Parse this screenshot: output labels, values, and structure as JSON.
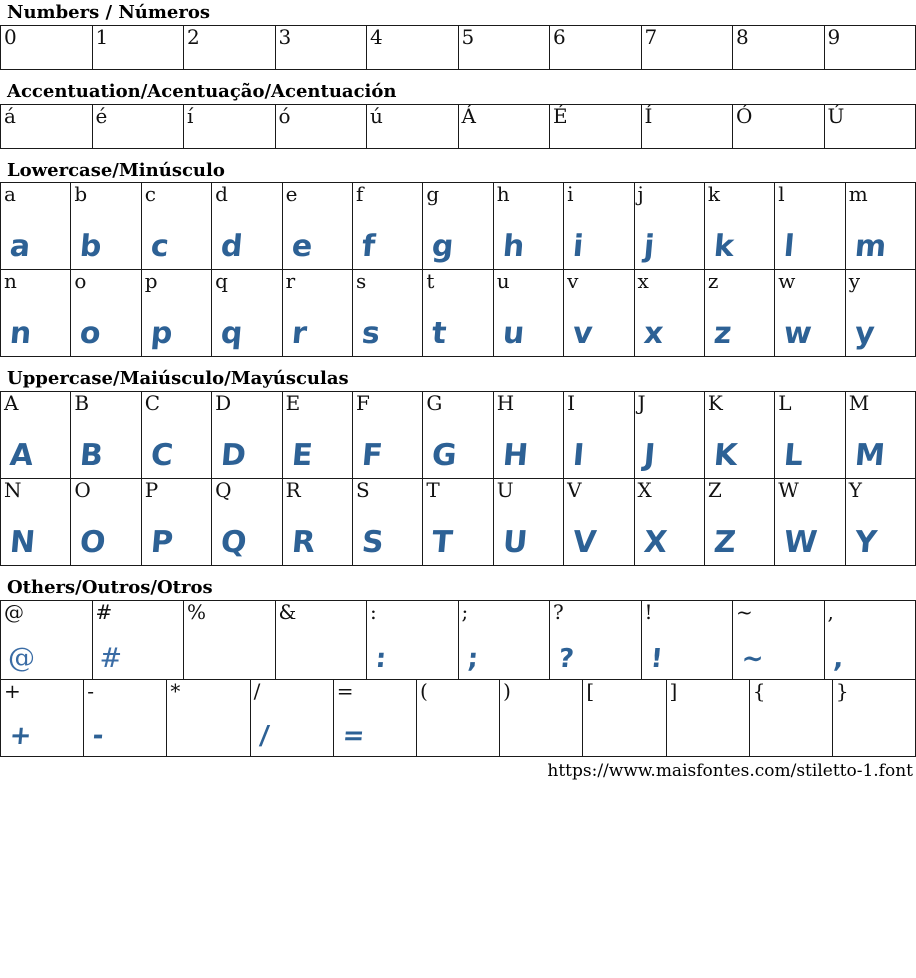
{
  "page": {
    "url": "https://www.maisfontes.com/stiletto-1.font",
    "glyph_color": "#2d6195",
    "fallback_glyph_color": "#3a6ca5",
    "border_color": "#1a1a1a"
  },
  "sections": [
    {
      "id": "numbers",
      "title": "Numbers / Números",
      "rows": [
        {
          "height": "h44",
          "cells": [
            {
              "label": "0",
              "glyph": ""
            },
            {
              "label": "1",
              "glyph": ""
            },
            {
              "label": "2",
              "glyph": ""
            },
            {
              "label": "3",
              "glyph": ""
            },
            {
              "label": "4",
              "glyph": ""
            },
            {
              "label": "5",
              "glyph": ""
            },
            {
              "label": "6",
              "glyph": ""
            },
            {
              "label": "7",
              "glyph": ""
            },
            {
              "label": "8",
              "glyph": ""
            },
            {
              "label": "9",
              "glyph": ""
            }
          ]
        }
      ]
    },
    {
      "id": "accentuation",
      "title": "Accentuation/Acentuação/Acentuación",
      "rows": [
        {
          "height": "h44",
          "cells": [
            {
              "label": "á",
              "glyph": ""
            },
            {
              "label": "é",
              "glyph": ""
            },
            {
              "label": "í",
              "glyph": ""
            },
            {
              "label": "ó",
              "glyph": ""
            },
            {
              "label": "ú",
              "glyph": ""
            },
            {
              "label": "Á",
              "glyph": ""
            },
            {
              "label": "É",
              "glyph": ""
            },
            {
              "label": "Í",
              "glyph": ""
            },
            {
              "label": "Ó",
              "glyph": ""
            },
            {
              "label": "Ú",
              "glyph": ""
            }
          ]
        }
      ]
    },
    {
      "id": "lowercase",
      "title": "Lowercase/Minúsculo",
      "rows": [
        {
          "height": "h88",
          "cells": [
            {
              "label": "a",
              "glyph": "a"
            },
            {
              "label": "b",
              "glyph": "b"
            },
            {
              "label": "c",
              "glyph": "c"
            },
            {
              "label": "d",
              "glyph": "d"
            },
            {
              "label": "e",
              "glyph": "e"
            },
            {
              "label": "f",
              "glyph": "f"
            },
            {
              "label": "g",
              "glyph": "g"
            },
            {
              "label": "h",
              "glyph": "h"
            },
            {
              "label": "i",
              "glyph": "i"
            },
            {
              "label": "j",
              "glyph": "j"
            },
            {
              "label": "k",
              "glyph": "k"
            },
            {
              "label": "l",
              "glyph": "l"
            },
            {
              "label": "m",
              "glyph": "m"
            }
          ]
        },
        {
          "height": "h88",
          "cells": [
            {
              "label": "n",
              "glyph": "n"
            },
            {
              "label": "o",
              "glyph": "o"
            },
            {
              "label": "p",
              "glyph": "p"
            },
            {
              "label": "q",
              "glyph": "q"
            },
            {
              "label": "r",
              "glyph": "r"
            },
            {
              "label": "s",
              "glyph": "s"
            },
            {
              "label": "t",
              "glyph": "t"
            },
            {
              "label": "u",
              "glyph": "u"
            },
            {
              "label": "v",
              "glyph": "v"
            },
            {
              "label": "x",
              "glyph": "x"
            },
            {
              "label": "z",
              "glyph": "z"
            },
            {
              "label": "w",
              "glyph": "w"
            },
            {
              "label": "y",
              "glyph": "y"
            }
          ]
        }
      ]
    },
    {
      "id": "uppercase",
      "title": "Uppercase/Maiúsculo/Mayúsculas",
      "rows": [
        {
          "height": "h88",
          "cells": [
            {
              "label": "A",
              "glyph": "A"
            },
            {
              "label": "B",
              "glyph": "B"
            },
            {
              "label": "C",
              "glyph": "C"
            },
            {
              "label": "D",
              "glyph": "D"
            },
            {
              "label": "E",
              "glyph": "E"
            },
            {
              "label": "F",
              "glyph": "F"
            },
            {
              "label": "G",
              "glyph": "G"
            },
            {
              "label": "H",
              "glyph": "H"
            },
            {
              "label": "I",
              "glyph": "I"
            },
            {
              "label": "J",
              "glyph": "J"
            },
            {
              "label": "K",
              "glyph": "K"
            },
            {
              "label": "L",
              "glyph": "L"
            },
            {
              "label": "M",
              "glyph": "M"
            }
          ]
        },
        {
          "height": "h88",
          "cells": [
            {
              "label": "N",
              "glyph": "N"
            },
            {
              "label": "O",
              "glyph": "O"
            },
            {
              "label": "P",
              "glyph": "P"
            },
            {
              "label": "Q",
              "glyph": "Q"
            },
            {
              "label": "R",
              "glyph": "R"
            },
            {
              "label": "S",
              "glyph": "S"
            },
            {
              "label": "T",
              "glyph": "T"
            },
            {
              "label": "U",
              "glyph": "U"
            },
            {
              "label": "V",
              "glyph": "V"
            },
            {
              "label": "X",
              "glyph": "X"
            },
            {
              "label": "Z",
              "glyph": "Z"
            },
            {
              "label": "W",
              "glyph": "W"
            },
            {
              "label": "Y",
              "glyph": "Y"
            }
          ]
        }
      ]
    },
    {
      "id": "others",
      "title": "Others/Outros/Otros",
      "rows": [
        {
          "height": "h80",
          "cells": [
            {
              "label": "@",
              "glyph": "@",
              "variant": "fallback"
            },
            {
              "label": "#",
              "glyph": "#",
              "variant": "fallback"
            },
            {
              "label": "%",
              "glyph": ""
            },
            {
              "label": "&",
              "glyph": ""
            },
            {
              "label": ":",
              "glyph": ":",
              "variant": "sym"
            },
            {
              "label": ";",
              "glyph": ";",
              "variant": "sym"
            },
            {
              "label": "?",
              "glyph": "?",
              "variant": "sym"
            },
            {
              "label": "!",
              "glyph": "!",
              "variant": "sym"
            },
            {
              "label": "~",
              "glyph": "~",
              "variant": "sym"
            },
            {
              "label": ",",
              "glyph": ",",
              "variant": "sym"
            }
          ]
        },
        {
          "height": "h78",
          "cells": [
            {
              "label": "+",
              "glyph": "+",
              "variant": "sym"
            },
            {
              "label": "-",
              "glyph": "-",
              "variant": "sym"
            },
            {
              "label": "*",
              "glyph": ""
            },
            {
              "label": "/",
              "glyph": "/",
              "variant": "sym"
            },
            {
              "label": "=",
              "glyph": "=",
              "variant": "sym"
            },
            {
              "label": "(",
              "glyph": ""
            },
            {
              "label": ")",
              "glyph": ""
            },
            {
              "label": "[",
              "glyph": ""
            },
            {
              "label": "]",
              "glyph": ""
            },
            {
              "label": "{",
              "glyph": ""
            },
            {
              "label": "}",
              "glyph": ""
            }
          ]
        }
      ]
    }
  ]
}
